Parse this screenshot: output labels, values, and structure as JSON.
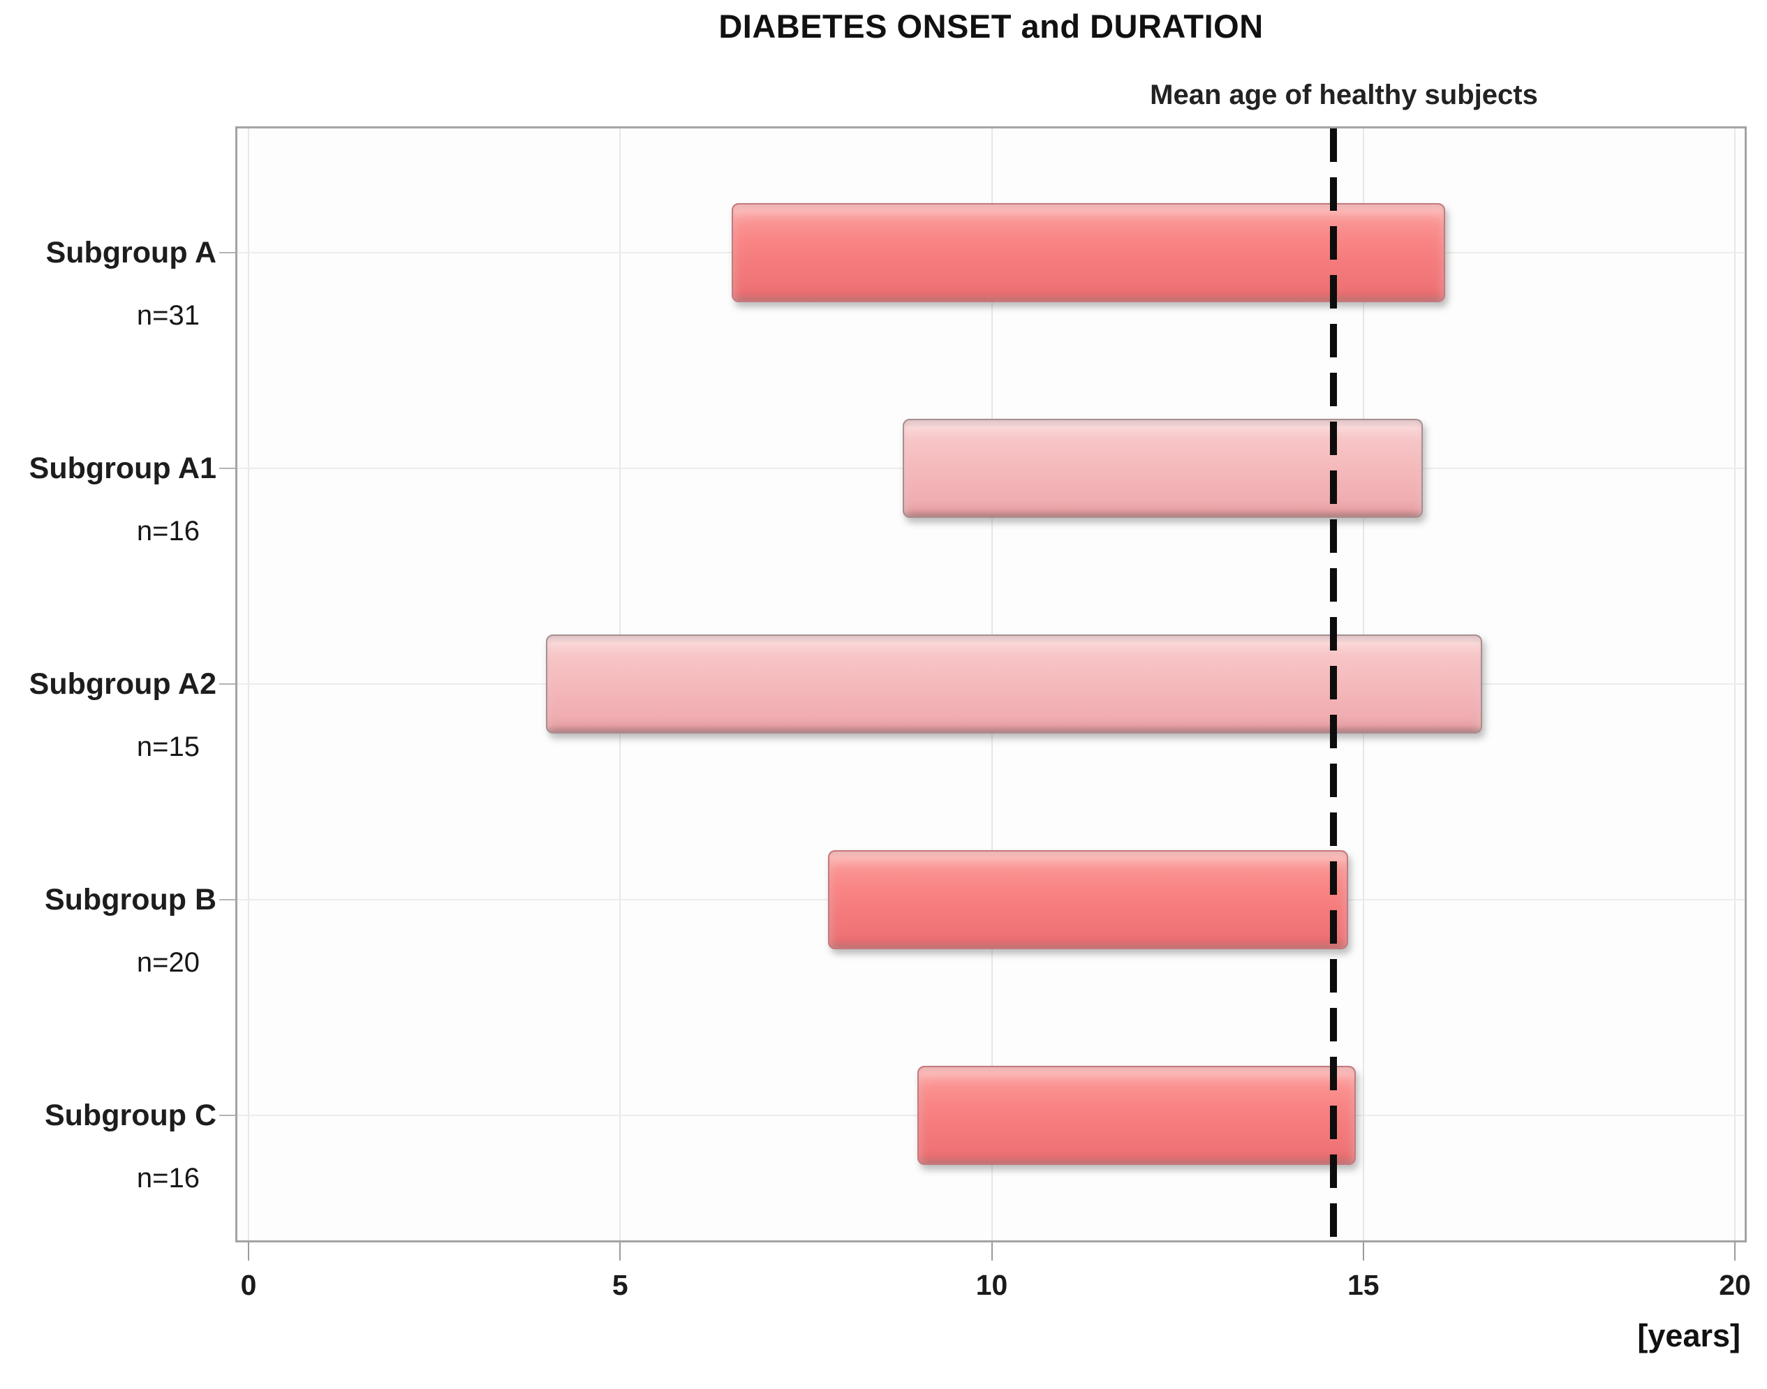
{
  "chart_data": {
    "type": "bar",
    "orientation": "horizontal-range",
    "title": "DIABETES ONSET and DURATION",
    "xlabel": "[years]",
    "xlim": [
      0,
      20
    ],
    "xticks": [
      0,
      5,
      10,
      15,
      20
    ],
    "xtick_labels": [
      "0",
      "5",
      "10",
      "15",
      "20"
    ],
    "grid": "on",
    "reference_line": {
      "label": "Mean age of healthy subjects",
      "value": 14.6,
      "style": "dashed-black-vertical"
    },
    "categories": [
      {
        "name": "Subgroup A",
        "n_label": "n=31",
        "start": 6.5,
        "end": 16.1,
        "shade": "dark"
      },
      {
        "name": "Subgroup A1",
        "n_label": "n=16",
        "start": 8.8,
        "end": 15.8,
        "shade": "light"
      },
      {
        "name": "Subgroup A2",
        "n_label": "n=15",
        "start": 4.0,
        "end": 16.6,
        "shade": "light"
      },
      {
        "name": "Subgroup B",
        "n_label": "n=20",
        "start": 7.8,
        "end": 14.8,
        "shade": "dark"
      },
      {
        "name": "Subgroup C",
        "n_label": "n=16",
        "start": 9.0,
        "end": 14.9,
        "shade": "dark"
      }
    ],
    "colors": {
      "bar_dark": "#f97e7e",
      "bar_dark_border": "#c5797d",
      "bar_light": "#f5b5b8",
      "bar_light_border": "#a98e90",
      "reference_line": "#0d0d0d",
      "frame_border": "#a3a3a3",
      "gridline": "#e7e7e7",
      "text": "#1b1b1b",
      "background": "#ffffff"
    }
  }
}
